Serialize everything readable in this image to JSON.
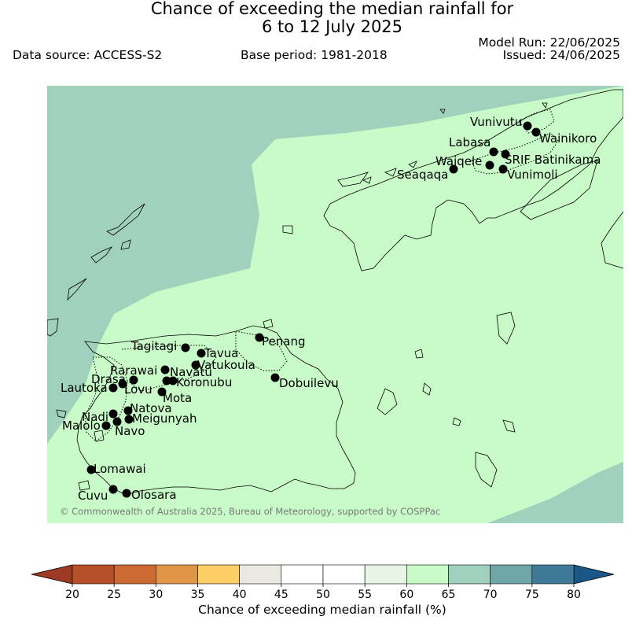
{
  "header": {
    "title_line1": "Chance of exceeding the median rainfall for",
    "title_line2": "6 to 12 July 2025",
    "data_source": "Data source: ACCESS-S2",
    "base_period": "Base period: 1981-2018",
    "model_run": "Model Run: 22/06/2025",
    "issued": "Issued: 24/06/2025"
  },
  "map": {
    "copyright": "© Commonwealth of Australia 2025, Bureau of Meteorology, supported by COSPPac",
    "fill_colors": {
      "band_60_65": "#c8fbc8",
      "band_65_70": "#9fd1bc"
    },
    "locations": [
      {
        "name": "Vunivutu"
      },
      {
        "name": "Wainikoro"
      },
      {
        "name": "Labasa"
      },
      {
        "name": "SRIF Batinikama"
      },
      {
        "name": "Waiqele"
      },
      {
        "name": "Seaqaqa"
      },
      {
        "name": "Vunimoli"
      },
      {
        "name": "Penang"
      },
      {
        "name": "Tagitagi"
      },
      {
        "name": "Tavua"
      },
      {
        "name": "Vatukoula"
      },
      {
        "name": "Rarawai"
      },
      {
        "name": "Navatu"
      },
      {
        "name": "Drasa"
      },
      {
        "name": "Koronubu"
      },
      {
        "name": "Lautoka"
      },
      {
        "name": "Lovu"
      },
      {
        "name": "Mota"
      },
      {
        "name": "Dobuilevu"
      },
      {
        "name": "Natova"
      },
      {
        "name": "Nadi"
      },
      {
        "name": "Meigunyah"
      },
      {
        "name": "Malolo"
      },
      {
        "name": "Navo"
      },
      {
        "name": "Lomawai"
      },
      {
        "name": "Cuvu"
      },
      {
        "name": "Olosara"
      }
    ]
  },
  "colorbar": {
    "label": "Chance of exceeding median rainfall (%)",
    "ticks": [
      "20",
      "25",
      "30",
      "35",
      "40",
      "45",
      "50",
      "55",
      "60",
      "65",
      "70",
      "75",
      "80"
    ],
    "colors": [
      "#b5502b",
      "#cc6a34",
      "#e19547",
      "#fece66",
      "#ebe8e2",
      "#ffffff",
      "#ffffff",
      "#e7f6e7",
      "#c8fbc8",
      "#9fd1bc",
      "#70a6a8",
      "#3f7a98"
    ],
    "under_color": "#9c3a24",
    "over_color": "#1b5689"
  }
}
